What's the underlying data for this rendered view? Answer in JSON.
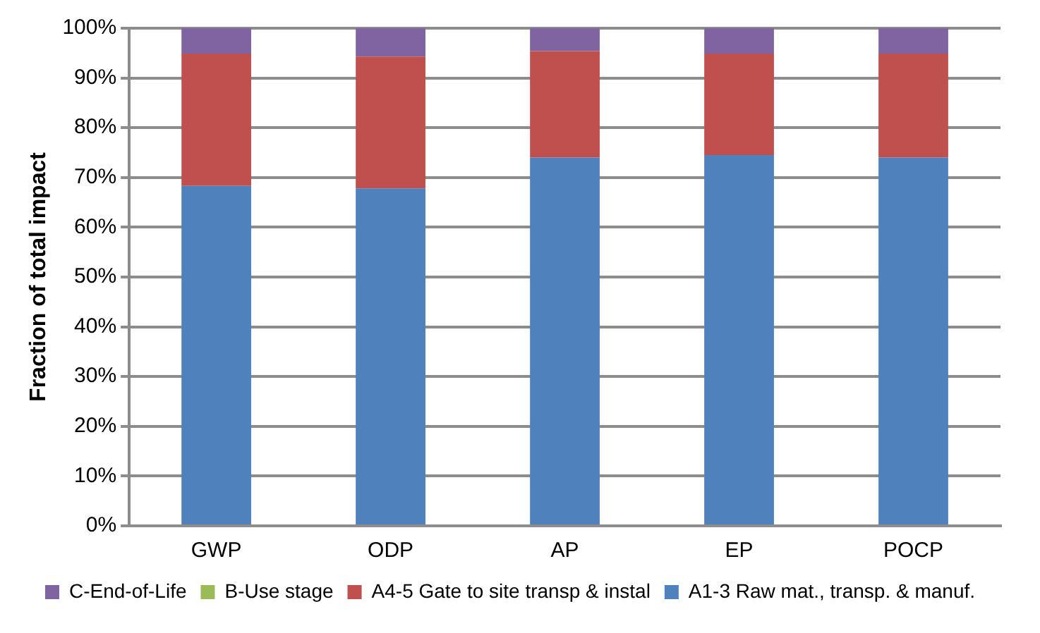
{
  "chart_data": {
    "type": "bar",
    "stacked": true,
    "ylabel": "Fraction of total impact",
    "categories": [
      "GWP",
      "ODP",
      "AP",
      "EP",
      "POCP"
    ],
    "series": [
      {
        "name": "A1-3 Raw mat., transp. & manuf.",
        "color": "#4f81bd",
        "values": [
          68.3,
          67.8,
          74.0,
          74.5,
          74.0
        ]
      },
      {
        "name": "A4-5 Gate to site transp & instal",
        "color": "#c0504d",
        "values": [
          26.6,
          26.5,
          21.4,
          20.4,
          20.9
        ]
      },
      {
        "name": "B-Use stage",
        "color": "#9bbb59",
        "values": [
          0,
          0,
          0,
          0,
          0
        ]
      },
      {
        "name": "C-End-of-Life",
        "color": "#8064a2",
        "values": [
          5.1,
          5.7,
          4.6,
          5.1,
          5.1
        ]
      }
    ],
    "ylim": [
      0,
      100
    ],
    "yticks": [
      {
        "value": 0,
        "label": "0%"
      },
      {
        "value": 10,
        "label": "10%"
      },
      {
        "value": 20,
        "label": "20%"
      },
      {
        "value": 30,
        "label": "30%"
      },
      {
        "value": 40,
        "label": "40%"
      },
      {
        "value": 50,
        "label": "50%"
      },
      {
        "value": 60,
        "label": "60%"
      },
      {
        "value": 70,
        "label": "70%"
      },
      {
        "value": 80,
        "label": "80%"
      },
      {
        "value": 90,
        "label": "90%"
      },
      {
        "value": 100,
        "label": "100%"
      }
    ],
    "grid": "y",
    "legend": "bottom"
  }
}
